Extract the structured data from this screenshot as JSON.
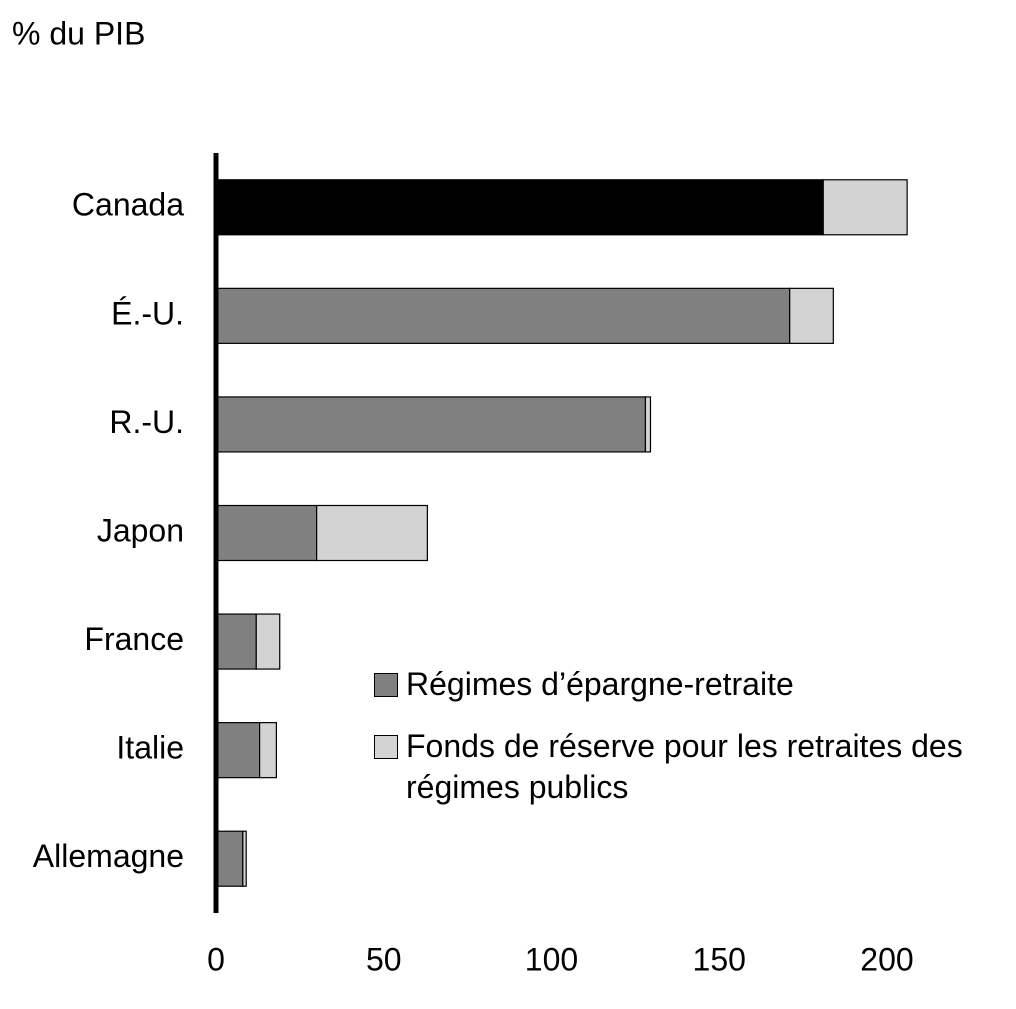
{
  "chart_data": {
    "type": "hbar_stacked",
    "unit_label": "% du PIB",
    "categories": [
      "Canada",
      "É.-U.",
      "R.-U.",
      "Japon",
      "France",
      "Italie",
      "Allemagne"
    ],
    "series": [
      {
        "name": "Régimes d’épargne-retraite",
        "color": "#808080",
        "values": [
          181,
          171,
          128,
          30,
          12,
          13,
          8
        ],
        "colors": [
          "#000000",
          "#808080",
          "#808080",
          "#808080",
          "#808080",
          "#808080",
          "#808080"
        ]
      },
      {
        "name": "Fonds de réserve pour les retraites des régimes publics",
        "color": "#d3d3d3",
        "values": [
          25,
          13,
          1.5,
          33,
          7,
          5,
          1
        ]
      }
    ],
    "xlim": [
      0,
      230
    ],
    "xticks": [
      0,
      50,
      100,
      150,
      200
    ],
    "legend_position": "lower right"
  }
}
